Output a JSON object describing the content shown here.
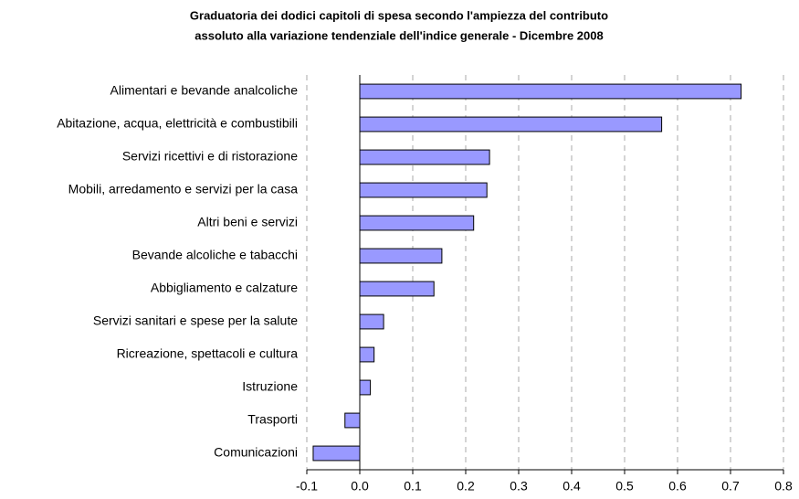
{
  "chart_data": {
    "type": "barh",
    "title": [
      "Graduatoria dei dodici capitoli di spesa secondo l'ampiezza del contributo",
      "assoluto alla variazione tendenziale dell'indice generale - Dicembre 2008"
    ],
    "categories": [
      "Alimentari e bevande analcoliche",
      "Abitazione, acqua, elettricità e combustibili",
      "Servizi ricettivi e di ristorazione",
      "Mobili, arredamento e servizi per la casa",
      "Altri beni e servizi",
      "Bevande alcoliche e tabacchi",
      "Abbigliamento e calzature",
      "Servizi sanitari e spese per la salute",
      "Ricreazione, spettacoli e cultura",
      "Istruzione",
      "Trasporti",
      "Comunicazioni"
    ],
    "values": [
      0.72,
      0.57,
      0.245,
      0.24,
      0.215,
      0.155,
      0.14,
      0.045,
      0.027,
      0.02,
      -0.028,
      -0.088
    ],
    "color": "#9999ff",
    "xlim": [
      -0.1,
      0.8
    ],
    "xticks": [
      -0.1,
      {
        "value": 0,
        "label": "0.0"
      },
      0.1,
      0.2,
      0.3,
      0.4,
      0.5,
      0.6,
      0.7,
      0.8
    ],
    "grid": true
  }
}
